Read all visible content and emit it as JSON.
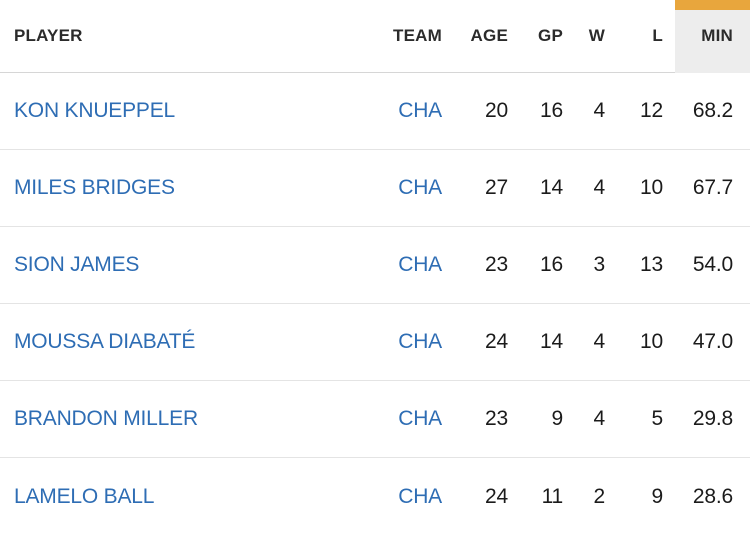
{
  "colors": {
    "sort_highlight_bar": "#e8a63d",
    "sorted_column_header_bg": "#ededed",
    "link_blue": "#2e6db4",
    "header_text": "#2b2b2b",
    "value_text": "#1b1b1b",
    "row_divider": "#e4e4e4"
  },
  "table": {
    "columns": [
      {
        "key": "player",
        "label": "PLAYER"
      },
      {
        "key": "team",
        "label": "TEAM"
      },
      {
        "key": "age",
        "label": "AGE"
      },
      {
        "key": "gp",
        "label": "GP"
      },
      {
        "key": "w",
        "label": "W"
      },
      {
        "key": "l",
        "label": "L"
      },
      {
        "key": "min",
        "label": "MIN",
        "sorted": true
      }
    ],
    "rows": [
      {
        "player": "KON KNUEPPEL",
        "team": "CHA",
        "age": "20",
        "gp": "16",
        "w": "4",
        "l": "12",
        "min": "68.2"
      },
      {
        "player": "MILES BRIDGES",
        "team": "CHA",
        "age": "27",
        "gp": "14",
        "w": "4",
        "l": "10",
        "min": "67.7"
      },
      {
        "player": "SION JAMES",
        "team": "CHA",
        "age": "23",
        "gp": "16",
        "w": "3",
        "l": "13",
        "min": "54.0"
      },
      {
        "player": "MOUSSA DIABATÉ",
        "team": "CHA",
        "age": "24",
        "gp": "14",
        "w": "4",
        "l": "10",
        "min": "47.0"
      },
      {
        "player": "BRANDON MILLER",
        "team": "CHA",
        "age": "23",
        "gp": "9",
        "w": "4",
        "l": "5",
        "min": "29.8"
      },
      {
        "player": "LAMELO BALL",
        "team": "CHA",
        "age": "24",
        "gp": "11",
        "w": "2",
        "l": "9",
        "min": "28.6"
      }
    ]
  }
}
